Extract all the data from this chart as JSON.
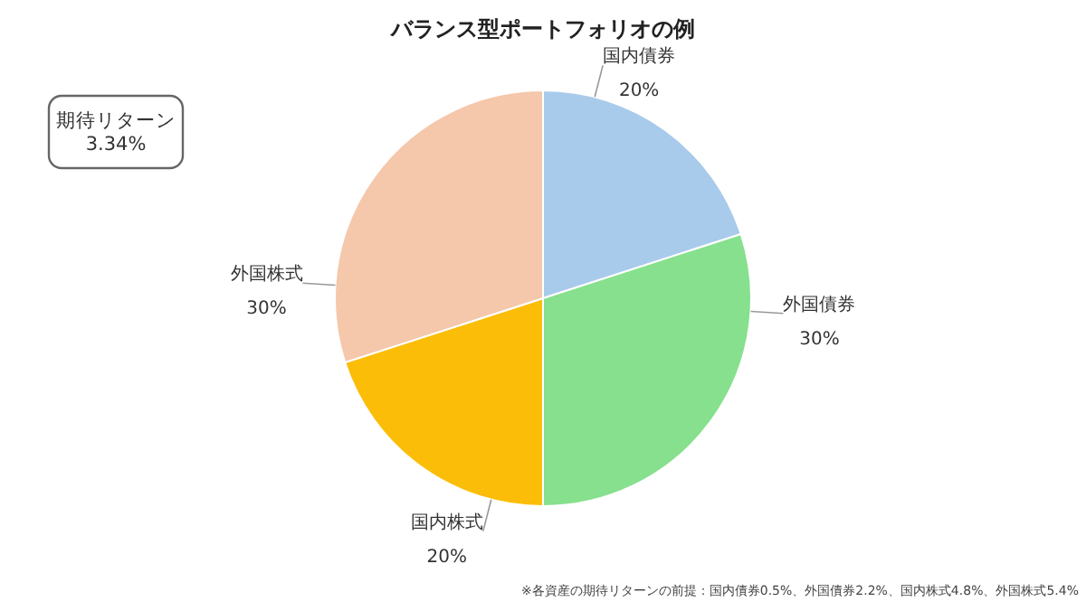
{
  "chart_data": {
    "type": "pie",
    "title": "バランス型ポートフォリオの例",
    "categories": [
      "国内債券",
      "外国債券",
      "国内株式",
      "外国株式"
    ],
    "values": [
      20,
      30,
      20,
      30
    ],
    "colors": [
      "#a9cbeb",
      "#86e08d",
      "#fbbd08",
      "#f5c7ab"
    ],
    "value_labels": [
      "20%",
      "30%",
      "20%",
      "30%"
    ],
    "annotations": [
      "期待リターン\n3.34%",
      "※各資産の期待リターンの前提：国内債券0.5%、外国債券2.2%、国内株式4.8%、外国株式5.4%"
    ]
  }
}
